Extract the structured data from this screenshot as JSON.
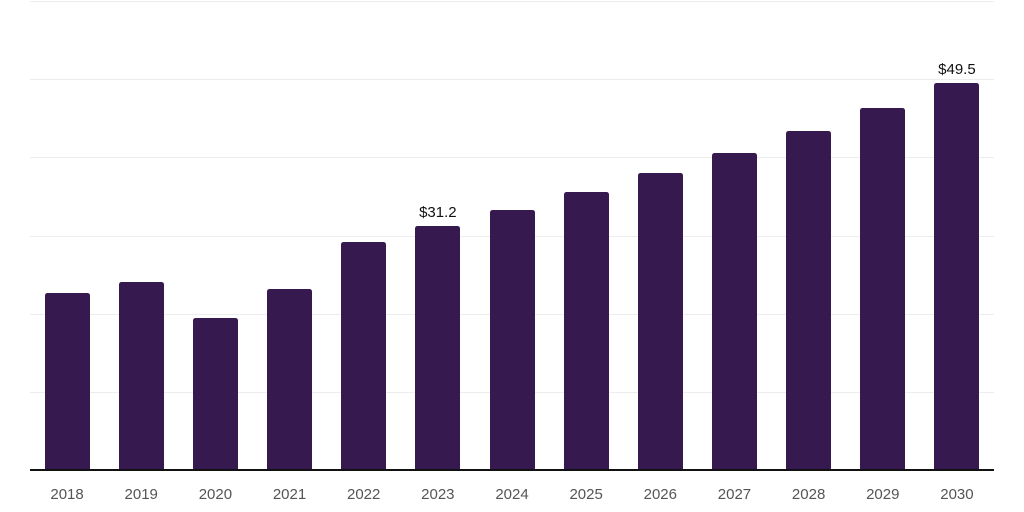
{
  "chart_data": {
    "type": "bar",
    "title": "",
    "xlabel": "",
    "ylabel": "",
    "categories": [
      "2018",
      "2019",
      "2020",
      "2021",
      "2022",
      "2023",
      "2024",
      "2025",
      "2026",
      "2027",
      "2028",
      "2029",
      "2030"
    ],
    "values": [
      22.6,
      24.0,
      19.4,
      23.1,
      29.2,
      31.2,
      33.3,
      35.6,
      38.0,
      40.6,
      43.4,
      46.3,
      49.5
    ],
    "value_labels": [
      null,
      null,
      null,
      null,
      null,
      "$31.2",
      null,
      null,
      null,
      null,
      null,
      null,
      "$49.5"
    ],
    "ylim": [
      0,
      60
    ],
    "grid_step": 10,
    "grid": "horizontal",
    "legend": "none",
    "colors": {
      "bar": "#36194e",
      "gridline": "#ededed",
      "axis": "#111111",
      "tick_label": "#555555",
      "value_label": "#111111",
      "background": "#ffffff"
    }
  }
}
